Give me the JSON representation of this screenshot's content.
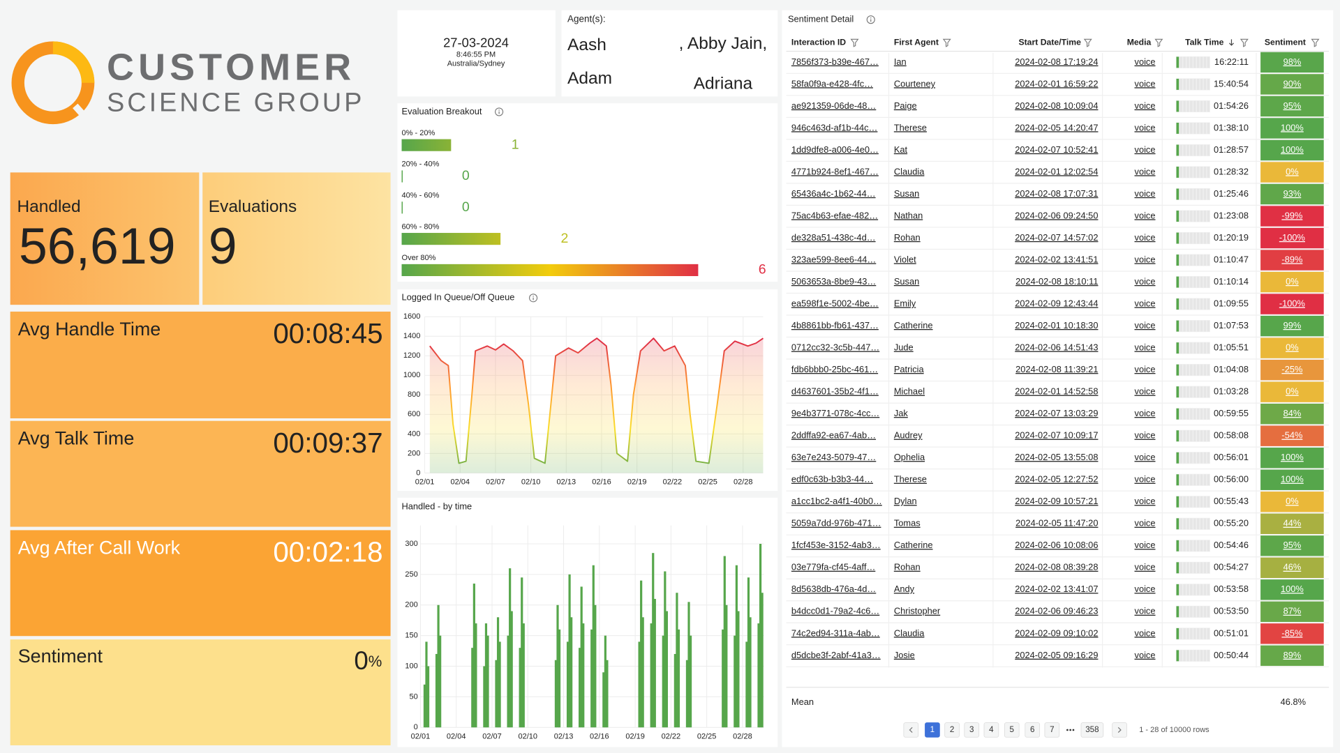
{
  "logo": {
    "line1": "CUSTOMER",
    "line2": "SCIENCE GROUP"
  },
  "stats": [
    {
      "title": "Handled",
      "value": "56,619"
    },
    {
      "title": "Evaluations",
      "value": "9"
    },
    {
      "title": "Avg Handle Time",
      "value": "00:08:45"
    },
    {
      "title": "Avg Talk Time",
      "value": "00:09:37"
    },
    {
      "title": "Avg After Call Work",
      "value": "00:02:18"
    },
    {
      "title": "Sentiment",
      "value": "0",
      "unit": "%"
    }
  ],
  "header": {
    "date": "27-03-2024",
    "time": "8:46:55 PM",
    "timezone": "Australia/Sydney"
  },
  "agents": {
    "label": "Agent(s):",
    "names": [
      "Aash",
      ", Abby Jain,",
      "Adam",
      "Adriana"
    ]
  },
  "chart_data": [
    {
      "type": "bar",
      "orientation": "horizontal",
      "title": "Evaluation Breakout",
      "categories": [
        "0% - 20%",
        "20% - 40%",
        "40% - 60%",
        "60% - 80%",
        "Over 80%"
      ],
      "values": [
        1,
        0,
        0,
        2,
        6
      ],
      "color_scale": [
        "#56a64b",
        "#f2cc0c",
        "#e02f44"
      ]
    },
    {
      "type": "line",
      "title": "Logged In Queue/Off Queue",
      "x": [
        1.43,
        2.4,
        3.0,
        3.4,
        3.9,
        4.5,
        5.0,
        5.3,
        6.3,
        7.0,
        7.7,
        8.5,
        9.3,
        9.8,
        10.3,
        11.2,
        11.7,
        12.1,
        13.2,
        14.0,
        15.0,
        15.6,
        16.4,
        16.8,
        17.3,
        18.2,
        18.7,
        19.3,
        20.4,
        21.3,
        22.2,
        23.1,
        23.5,
        24.0,
        25.1,
        25.8,
        26.4,
        27.3,
        28.4,
        29.1,
        29.7
      ],
      "values": [
        1300,
        1150,
        1100,
        500,
        100,
        120,
        800,
        1250,
        1300,
        1260,
        1320,
        1250,
        1150,
        700,
        150,
        100,
        700,
        1200,
        1280,
        1230,
        1330,
        1380,
        1300,
        900,
        200,
        120,
        800,
        1250,
        1380,
        1250,
        1300,
        1100,
        600,
        120,
        100,
        700,
        1250,
        1350,
        1300,
        1330,
        1380
      ],
      "xlim": [
        1,
        29.7
      ],
      "xticks": [
        {
          "value": 1,
          "label": "02/01"
        },
        {
          "value": 4,
          "label": "02/04"
        },
        {
          "value": 7,
          "label": "02/07"
        },
        {
          "value": 10,
          "label": "02/10"
        },
        {
          "value": 13,
          "label": "02/13"
        },
        {
          "value": 16,
          "label": "02/16"
        },
        {
          "value": 19,
          "label": "02/19"
        },
        {
          "value": 22,
          "label": "02/22"
        },
        {
          "value": 25,
          "label": "02/25"
        },
        {
          "value": 28,
          "label": "02/28"
        }
      ],
      "ylim": [
        0,
        1600
      ],
      "yticks": [
        0,
        200,
        400,
        600,
        800,
        1000,
        1200,
        1400,
        1600
      ],
      "grid": true,
      "color_scale": [
        "#e02f44",
        "#ff9830",
        "#fade2a",
        "#56a64b"
      ]
    },
    {
      "type": "bar",
      "title": "Handled - by time",
      "x": [
        1.35,
        1.5,
        1.65,
        2.35,
        2.5,
        2.65,
        5.35,
        5.5,
        5.65,
        6.35,
        6.5,
        6.65,
        7.35,
        7.5,
        7.65,
        8.35,
        8.5,
        8.65,
        9.35,
        9.5,
        9.65,
        12.35,
        12.5,
        12.65,
        13.35,
        13.5,
        13.65,
        14.35,
        14.5,
        14.65,
        15.35,
        15.5,
        15.65,
        16.35,
        16.5,
        16.65,
        19.35,
        19.5,
        19.65,
        20.35,
        20.5,
        20.65,
        21.35,
        21.5,
        21.65,
        22.35,
        22.5,
        22.65,
        23.35,
        23.5,
        23.65,
        26.35,
        26.5,
        26.65,
        27.35,
        27.5,
        27.65,
        28.35,
        28.5,
        28.65,
        29.35,
        29.5,
        29.65
      ],
      "values": [
        70,
        140,
        100,
        120,
        200,
        150,
        130,
        235,
        170,
        100,
        170,
        150,
        110,
        180,
        140,
        150,
        260,
        190,
        130,
        245,
        170,
        110,
        200,
        160,
        140,
        250,
        180,
        130,
        230,
        170,
        160,
        265,
        200,
        90,
        150,
        110,
        140,
        240,
        180,
        170,
        285,
        210,
        150,
        255,
        190,
        120,
        220,
        160,
        110,
        205,
        150,
        160,
        280,
        200,
        150,
        265,
        190,
        140,
        245,
        180,
        170,
        300,
        220
      ],
      "color": "#56a64b",
      "xlim": [
        1,
        29.8
      ],
      "xticks": [
        {
          "value": 1,
          "label": "02/01"
        },
        {
          "value": 4,
          "label": "02/04"
        },
        {
          "value": 7,
          "label": "02/07"
        },
        {
          "value": 10,
          "label": "02/10"
        },
        {
          "value": 13,
          "label": "02/13"
        },
        {
          "value": 16,
          "label": "02/16"
        },
        {
          "value": 19,
          "label": "02/19"
        },
        {
          "value": 22,
          "label": "02/22"
        },
        {
          "value": 25,
          "label": "02/25"
        },
        {
          "value": 28,
          "label": "02/28"
        }
      ],
      "ylim": [
        0,
        330
      ],
      "yticks": [
        0,
        50,
        100,
        150,
        200,
        250,
        300
      ],
      "grid": true
    }
  ],
  "table": {
    "title": "Sentiment Detail",
    "columns": [
      "Interaction ID",
      "First Agent",
      "Start Date/Time",
      "Media",
      "Talk Time",
      "Sentiment"
    ],
    "rows": [
      [
        "7856f373-b39e-467…",
        "Ian",
        "2024-02-08 17:19:24",
        "voice",
        "16:22:11",
        "98%"
      ],
      [
        "58fa0f9a-e428-4fc…",
        "Courteney",
        "2024-02-01 16:59:22",
        "voice",
        "15:40:54",
        "90%"
      ],
      [
        "ae921359-06de-48…",
        "Paige",
        "2024-02-08 10:09:04",
        "voice",
        "01:54:26",
        "95%"
      ],
      [
        "946c463d-af1b-44c…",
        "Therese",
        "2024-02-05 14:20:47",
        "voice",
        "01:38:10",
        "100%"
      ],
      [
        "1dd9dfe8-a006-4e0…",
        "Kat",
        "2024-02-07 10:52:41",
        "voice",
        "01:28:57",
        "100%"
      ],
      [
        "4771b924-8ef1-467…",
        "Claudia",
        "2024-02-01 12:02:54",
        "voice",
        "01:28:32",
        "0%"
      ],
      [
        "65436a4c-1b62-44…",
        "Susan",
        "2024-02-08 17:07:31",
        "voice",
        "01:25:46",
        "93%"
      ],
      [
        "75ac4b63-efae-482…",
        "Nathan",
        "2024-02-06 09:24:50",
        "voice",
        "01:23:08",
        "-99%"
      ],
      [
        "de328a51-438c-4d…",
        "Rohan",
        "2024-02-07 14:57:02",
        "voice",
        "01:20:19",
        "-100%"
      ],
      [
        "323ae599-8ee6-44…",
        "Violet",
        "2024-02-02 13:41:51",
        "voice",
        "01:10:47",
        "-89%"
      ],
      [
        "5063653a-8be9-43…",
        "Susan",
        "2024-02-08 18:10:11",
        "voice",
        "01:10:14",
        "0%"
      ],
      [
        "ea598f1e-5002-4be…",
        "Emily",
        "2024-02-09 12:43:44",
        "voice",
        "01:09:55",
        "-100%"
      ],
      [
        "4b8861bb-fb61-437…",
        "Catherine",
        "2024-02-01 10:18:30",
        "voice",
        "01:07:53",
        "99%"
      ],
      [
        "0712cc32-3c5b-447…",
        "Jude",
        "2024-02-06 14:51:43",
        "voice",
        "01:05:51",
        "0%"
      ],
      [
        "fdb6bbb0-25bc-461…",
        "Patricia",
        "2024-02-08 11:39:21",
        "voice",
        "01:04:08",
        "-25%"
      ],
      [
        "d4637601-35b2-4f1…",
        "Michael",
        "2024-02-01 14:52:58",
        "voice",
        "01:03:28",
        "0%"
      ],
      [
        "9e4b3771-078c-4cc…",
        "Jak",
        "2024-02-07 13:03:29",
        "voice",
        "00:59:55",
        "84%"
      ],
      [
        "2ddffa92-ea67-4ab…",
        "Audrey",
        "2024-02-07 10:09:17",
        "voice",
        "00:58:08",
        "-54%"
      ],
      [
        "63e7e243-5079-47…",
        "Ophelia",
        "2024-02-05 13:55:08",
        "voice",
        "00:56:01",
        "100%"
      ],
      [
        "edf0c63b-b3b3-44…",
        "Therese",
        "2024-02-05 12:27:52",
        "voice",
        "00:56:00",
        "100%"
      ],
      [
        "a1cc1bc2-a4f1-40b0…",
        "Dylan",
        "2024-02-09 10:57:21",
        "voice",
        "00:55:43",
        "0%"
      ],
      [
        "5059a7dd-976b-471…",
        "Tomas",
        "2024-02-05 11:47:20",
        "voice",
        "00:55:20",
        "44%"
      ],
      [
        "1fcf453e-3152-4ab3…",
        "Catherine",
        "2024-02-06 10:08:06",
        "voice",
        "00:54:46",
        "95%"
      ],
      [
        "03e779fa-cf45-4aff…",
        "Rohan",
        "2024-02-08 08:39:28",
        "voice",
        "00:54:27",
        "46%"
      ],
      [
        "8d5638db-476a-4d…",
        "Andy",
        "2024-02-02 13:41:07",
        "voice",
        "00:53:58",
        "100%"
      ],
      [
        "b4dcc0d1-79a2-4c6…",
        "Christopher",
        "2024-02-06 09:46:23",
        "voice",
        "00:53:50",
        "87%"
      ],
      [
        "74c2ed94-311a-4ab…",
        "Claudia",
        "2024-02-09 09:10:02",
        "voice",
        "00:51:01",
        "-85%"
      ],
      [
        "d5dcbe3f-2abf-41a3…",
        "Josie",
        "2024-02-05 09:16:29",
        "voice",
        "00:50:44",
        "89%"
      ]
    ],
    "color_scale": [
      "#e02f44",
      "#eab839",
      "#56a64b"
    ],
    "footer": {
      "label": "Mean",
      "value": "46.8%"
    }
  },
  "pagination": {
    "pages": [
      "1",
      "2",
      "3",
      "4",
      "5",
      "6",
      "7",
      "358"
    ],
    "summary": "1 - 28 of 10000 rows"
  }
}
